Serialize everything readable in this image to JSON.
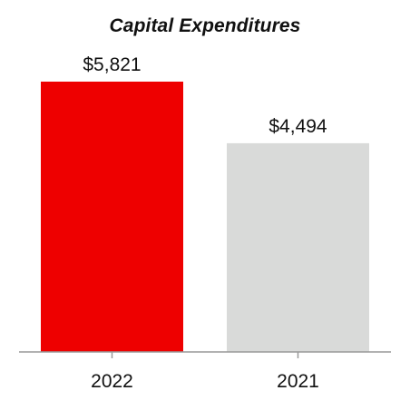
{
  "chart_data": {
    "type": "bar",
    "title": "Capital Expenditures",
    "categories": [
      "2022",
      "2021"
    ],
    "values": [
      5821,
      4494
    ],
    "value_labels": [
      "$5,821",
      "$4,494"
    ],
    "bar_colors": [
      "#ee0000",
      "#d9dad9"
    ],
    "axis_color": "#999999",
    "xlabel": "",
    "ylabel": "",
    "ylim": [
      0,
      5821
    ],
    "grid": false,
    "legend": "none"
  }
}
